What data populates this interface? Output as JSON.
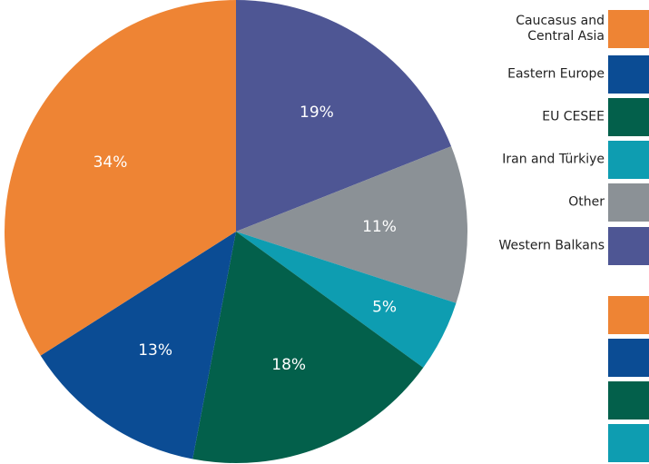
{
  "chart_data": {
    "type": "pie",
    "slices": [
      {
        "label": "Western Balkans",
        "value": 19,
        "display": "19%",
        "color": "#4e5694"
      },
      {
        "label": "Other",
        "value": 11,
        "display": "11%",
        "color": "#8b9196"
      },
      {
        "label": "Iran and Türkiye",
        "value": 5,
        "display": "5%",
        "color": "#0e9db1"
      },
      {
        "label": "EU CESEE",
        "value": 18,
        "display": "18%",
        "color": "#03604b"
      },
      {
        "label": "Eastern Europe",
        "value": 13,
        "display": "13%",
        "color": "#0b4c94"
      },
      {
        "label": "Caucasus and Central Asia",
        "value": 34,
        "display": "34%",
        "color": "#ee8434"
      }
    ],
    "legend": {
      "placement": "right",
      "entries": [
        {
          "label": "Caucasus and\nCentral Asia",
          "color": "#ee8434"
        },
        {
          "label": "Eastern Europe",
          "color": "#0b4c94"
        },
        {
          "label": "EU CESEE",
          "color": "#03604b"
        },
        {
          "label": "Iran and Türkiye",
          "color": "#0e9db1"
        },
        {
          "label": "Other",
          "color": "#8b9196"
        },
        {
          "label": "Western Balkans",
          "color": "#4e5694"
        }
      ]
    },
    "second_legend_colors": [
      "#ee8434",
      "#0b4c94",
      "#03604b",
      "#0e9db1"
    ]
  }
}
